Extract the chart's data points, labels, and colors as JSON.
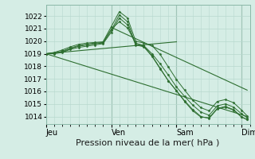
{
  "bg_color": "#d5ede5",
  "grid_color": "#b8d8ce",
  "line_color": "#2d6e30",
  "marker_color": "#2d6e30",
  "xlabel": "Pression niveau de la mer( hPa )",
  "xlabel_fontsize": 8,
  "yticks": [
    1014,
    1015,
    1016,
    1017,
    1018,
    1019,
    1020,
    1021,
    1022
  ],
  "ylim": [
    1013.4,
    1022.9
  ],
  "xtick_labels": [
    "Jeu",
    "Ven",
    "Sam",
    "Dim"
  ],
  "xtick_positions": [
    0,
    24,
    48,
    72
  ],
  "xlim": [
    0,
    75
  ],
  "curve_lines": [
    [
      0,
      1019.0,
      3,
      1019.1,
      6,
      1019.3,
      9,
      1019.55,
      12,
      1019.75,
      15,
      1019.85,
      18,
      1019.9,
      21,
      1019.95,
      24,
      1021.15,
      27,
      1022.35,
      30,
      1021.85,
      33,
      1020.0,
      36,
      1019.85,
      39,
      1019.65,
      42,
      1018.95,
      45,
      1017.95,
      48,
      1016.95,
      51,
      1016.1,
      54,
      1015.3,
      57,
      1014.7,
      60,
      1014.45,
      63,
      1015.2,
      66,
      1015.35,
      69,
      1015.1,
      72,
      1014.5,
      74,
      1014.05
    ],
    [
      0,
      1019.0,
      3,
      1019.05,
      6,
      1019.2,
      9,
      1019.45,
      12,
      1019.65,
      15,
      1019.75,
      18,
      1019.85,
      21,
      1019.9,
      24,
      1020.95,
      27,
      1021.55,
      30,
      1021.05,
      33,
      1019.85,
      36,
      1019.65,
      39,
      1019.0,
      42,
      1018.2,
      45,
      1017.3,
      48,
      1016.35,
      51,
      1015.6,
      54,
      1014.9,
      57,
      1014.35,
      60,
      1014.1,
      63,
      1014.85,
      66,
      1015.0,
      69,
      1014.75,
      72,
      1014.2,
      74,
      1013.9
    ],
    [
      0,
      1019.0,
      3,
      1019.0,
      6,
      1019.1,
      9,
      1019.35,
      12,
      1019.5,
      15,
      1019.6,
      18,
      1019.7,
      21,
      1019.8,
      24,
      1020.7,
      27,
      1021.85,
      30,
      1021.3,
      33,
      1019.7,
      36,
      1019.55,
      39,
      1018.8,
      42,
      1017.8,
      45,
      1016.85,
      48,
      1016.05,
      51,
      1015.25,
      54,
      1014.55,
      57,
      1014.0,
      60,
      1013.85,
      63,
      1014.6,
      66,
      1014.75,
      69,
      1014.5,
      72,
      1013.95,
      74,
      1013.75
    ],
    [
      0,
      1019.0,
      3,
      1019.05,
      6,
      1019.15,
      9,
      1019.4,
      12,
      1019.6,
      15,
      1019.7,
      18,
      1019.8,
      21,
      1019.85,
      24,
      1020.85,
      27,
      1022.1,
      30,
      1021.55,
      33,
      1019.75,
      36,
      1019.6,
      39,
      1018.85,
      42,
      1017.85,
      45,
      1016.85,
      48,
      1016.05,
      51,
      1015.2,
      54,
      1014.45,
      57,
      1013.95,
      60,
      1013.9,
      63,
      1014.65,
      66,
      1014.8,
      69,
      1014.55,
      72,
      1013.95,
      74,
      1013.75
    ]
  ],
  "straight_lines": [
    [
      0,
      1019.0,
      48,
      1019.95
    ],
    [
      0,
      1019.0,
      74,
      1014.0
    ],
    [
      24,
      1021.1,
      74,
      1016.1
    ]
  ]
}
